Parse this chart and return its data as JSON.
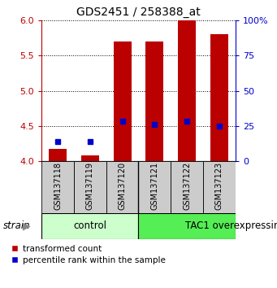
{
  "title": "GDS2451 / 258388_at",
  "samples": [
    "GSM137118",
    "GSM137119",
    "GSM137120",
    "GSM137121",
    "GSM137122",
    "GSM137123"
  ],
  "red_values": [
    4.18,
    4.08,
    5.7,
    5.7,
    6.0,
    5.8
  ],
  "blue_values": [
    4.28,
    4.28,
    4.57,
    4.52,
    4.57,
    4.5
  ],
  "ylim": [
    4.0,
    6.0
  ],
  "yticks_left": [
    4.0,
    4.5,
    5.0,
    5.5,
    6.0
  ],
  "yticks_right_labels": [
    "0",
    "25",
    "50",
    "75",
    "100%"
  ],
  "bar_width": 0.55,
  "red_color": "#bb0000",
  "blue_color": "#0000cc",
  "group_boundary": 3,
  "control_color": "#ccffcc",
  "tac1_color": "#55ee55",
  "legend": [
    "transformed count",
    "percentile rank within the sample"
  ],
  "title_fontsize": 10,
  "tick_fontsize": 8,
  "label_fontsize": 7,
  "group_fontsize": 8.5
}
